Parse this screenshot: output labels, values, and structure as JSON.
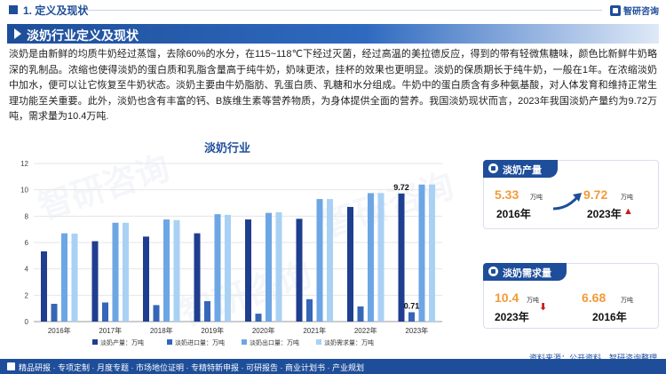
{
  "header": {
    "section_title": "1. 定义及现状",
    "logo_text": "智研咨询"
  },
  "banner": {
    "title": "淡奶行业定义及现状"
  },
  "intro_text": "淡奶是由新鲜的均质牛奶经过蒸馏，去除60%的水分，在115~118℃下经过灭菌，经过高温的美拉德反应，得到的带有轻微焦糖味，颜色比新鲜牛奶略深的乳制品。浓缩也使得淡奶的蛋白质和乳脂含量高于纯牛奶，奶味更浓，挂杯的效果也更明显。淡奶的保质期长于纯牛奶，一般在1年。在浓缩淡奶中加水，便可以让它恢复至牛奶状态。淡奶主要由牛奶脂肪、乳蛋白质、乳糖和水分组成。牛奶中的蛋白质含有多种氨基酸，对人体发育和维持正常生理功能至关重要。此外，淡奶也含有丰富的钙、B族维生素等营养物质，为身体提供全面的营养。我国淡奶现状而言，2023年我国淡奶产量约为9.72万吨，需求量为10.4万吨.",
  "chart_data": {
    "type": "bar",
    "title": "淡奶行业",
    "categories": [
      "2016年",
      "2017年",
      "2018年",
      "2019年",
      "2020年",
      "2021年",
      "2022年",
      "2023年"
    ],
    "ylim": [
      0,
      12
    ],
    "yticks": [
      0,
      2,
      4,
      6,
      8,
      10,
      12
    ],
    "series": [
      {
        "name": "淡奶产量：万吨",
        "color": "#1f3e8f",
        "values": [
          5.33,
          6.1,
          6.45,
          6.7,
          7.75,
          7.8,
          8.7,
          9.72
        ]
      },
      {
        "name": "淡奶进口量：万吨",
        "color": "#3566b8",
        "values": [
          1.35,
          1.45,
          1.25,
          1.55,
          0.6,
          1.7,
          1.15,
          0.71
        ]
      },
      {
        "name": "淡奶出口量：万吨",
        "color": "#6da6e4",
        "values": [
          6.7,
          7.5,
          7.75,
          8.15,
          8.25,
          9.3,
          9.75,
          10.4
        ]
      },
      {
        "name": "淡奶需求量：万吨",
        "color": "#a9d1f4",
        "values": [
          6.68,
          7.5,
          7.7,
          8.1,
          8.3,
          9.3,
          9.75,
          10.4
        ]
      }
    ],
    "data_labels": [
      {
        "series": 0,
        "index": 7,
        "text": "9.72"
      },
      {
        "series": 1,
        "index": 7,
        "text": "0.71"
      }
    ]
  },
  "cards": {
    "production": {
      "title": "淡奶产量",
      "v1": "5.33",
      "u1": "万吨",
      "y1": "2016年",
      "v2": "9.72",
      "u2": "万吨",
      "y2": "2023年"
    },
    "demand": {
      "title": "淡奶需求量",
      "v1": "10.4",
      "u1": "万吨",
      "y1": "2023年",
      "v2": "6.68",
      "u2": "万吨",
      "y2": "2016年"
    }
  },
  "source": "资料来源：公开资料、智研咨询整理",
  "footer": "精品研报 · 专项定制 · 月度专题 · 市场地位证明 · 专精特新申报 · 可研报告 · 商业计划书 · 产业规划",
  "watermark": "智研咨询",
  "colors": {
    "brand": "#1e4e9a",
    "accent": "#f29b38",
    "up": "#c81d1d"
  }
}
